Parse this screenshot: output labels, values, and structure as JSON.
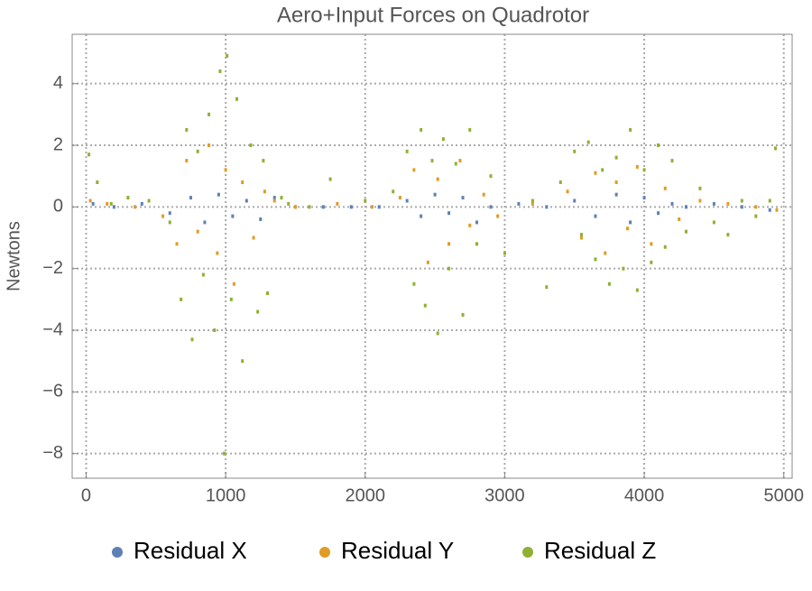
{
  "chart_data": {
    "type": "scatter",
    "title": "Aero+Input Forces on Quadrotor",
    "y_label": "Newtons",
    "xlim": [
      -100,
      5060
    ],
    "ylim": [
      -8.8,
      5.6
    ],
    "xticks": [
      0,
      1000,
      2000,
      3000,
      4000,
      5000
    ],
    "yticks": [
      {
        "value": -8,
        "label": "−8"
      },
      {
        "value": -6,
        "label": "−6"
      },
      {
        "value": -4,
        "label": "−4"
      },
      {
        "value": -2,
        "label": "−2"
      },
      0,
      2,
      4
    ],
    "grid": true,
    "legend": "bottom",
    "series": [
      {
        "name": "Residual X",
        "color": "#5e81b5",
        "x": [
          50,
          200,
          400,
          600,
          750,
          850,
          950,
          1050,
          1150,
          1250,
          1350,
          1500,
          1700,
          1900,
          2100,
          2300,
          2400,
          2500,
          2600,
          2700,
          2800,
          2900,
          3100,
          3300,
          3500,
          3650,
          3800,
          3900,
          4000,
          4100,
          4200,
          4300,
          4500,
          4700,
          4900
        ],
        "values": [
          0.1,
          0,
          0.1,
          -0.2,
          0.3,
          -0.5,
          0.4,
          -0.3,
          0.2,
          -0.4,
          0.3,
          0,
          0,
          0,
          0,
          0.2,
          -0.3,
          0.4,
          -0.2,
          0.3,
          -0.5,
          0,
          0.1,
          0,
          0.2,
          -0.3,
          0.4,
          -0.5,
          0.3,
          -0.2,
          0.1,
          0,
          0.1,
          0,
          -0.1
        ]
      },
      {
        "name": "Residual Y",
        "color": "#e19c24",
        "x": [
          30,
          150,
          350,
          550,
          650,
          720,
          800,
          880,
          940,
          1000,
          1060,
          1120,
          1200,
          1280,
          1350,
          1500,
          1800,
          2050,
          2250,
          2350,
          2450,
          2520,
          2600,
          2680,
          2750,
          2850,
          2950,
          3200,
          3450,
          3550,
          3650,
          3720,
          3800,
          3880,
          3950,
          4050,
          4150,
          4250,
          4400,
          4600,
          4800,
          4950
        ],
        "values": [
          0.2,
          0.1,
          0,
          -0.3,
          -1.2,
          1.5,
          -0.8,
          2.0,
          -1.5,
          1.2,
          -2.5,
          0.8,
          -1.0,
          0.5,
          0.2,
          0,
          0.1,
          0,
          0.3,
          1.2,
          -1.8,
          0.9,
          -1.2,
          1.5,
          -0.6,
          0.4,
          -0.3,
          0.1,
          0.5,
          -1.0,
          1.1,
          -1.5,
          0.8,
          -0.7,
          1.3,
          -1.2,
          0.6,
          -0.4,
          0.2,
          0.1,
          0,
          -0.1
        ]
      },
      {
        "name": "Residual Z",
        "color": "#8fb032",
        "x": [
          20,
          80,
          180,
          300,
          450,
          600,
          680,
          720,
          760,
          800,
          840,
          880,
          920,
          960,
          990,
          1010,
          1040,
          1080,
          1120,
          1180,
          1230,
          1270,
          1300,
          1400,
          1450,
          1600,
          1750,
          2000,
          2200,
          2300,
          2350,
          2400,
          2430,
          2480,
          2520,
          2560,
          2600,
          2650,
          2700,
          2750,
          2800,
          2900,
          3000,
          3200,
          3300,
          3400,
          3500,
          3550,
          3600,
          3650,
          3700,
          3750,
          3800,
          3850,
          3900,
          3950,
          4000,
          4050,
          4100,
          4150,
          4200,
          4300,
          4400,
          4500,
          4600,
          4700,
          4800,
          4900,
          4940
        ],
        "values": [
          1.7,
          0.8,
          0.1,
          0.3,
          0.2,
          -0.5,
          -3.0,
          2.5,
          -4.3,
          1.8,
          -2.2,
          3.0,
          -4.0,
          4.4,
          -8.0,
          4.9,
          -3.0,
          3.5,
          -5.0,
          2.0,
          -3.4,
          1.5,
          -2.8,
          0.3,
          0.1,
          0,
          0.9,
          0.2,
          0.5,
          1.8,
          -2.5,
          2.5,
          -3.2,
          1.5,
          -4.1,
          2.2,
          -2.0,
          1.4,
          -3.5,
          2.5,
          -1.2,
          1.0,
          -1.5,
          0.2,
          -2.6,
          0.8,
          1.8,
          -0.9,
          2.1,
          -1.7,
          1.2,
          -2.5,
          1.6,
          -2.0,
          2.5,
          -2.7,
          1.2,
          -1.8,
          2.0,
          -1.3,
          1.5,
          -0.8,
          0.6,
          -0.5,
          -0.9,
          0.2,
          -0.3,
          0.2,
          1.9
        ]
      }
    ]
  }
}
